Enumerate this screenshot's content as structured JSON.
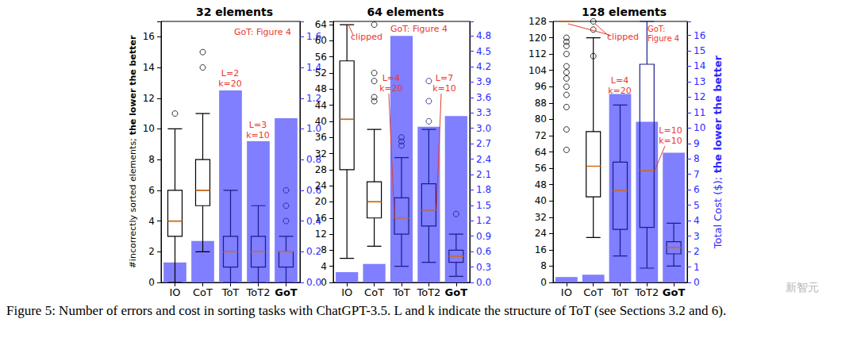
{
  "chart_data": [
    {
      "type": "boxplot",
      "title": "32 elements",
      "categories": [
        "IO",
        "CoT",
        "ToT",
        "ToT2",
        "GoT"
      ],
      "ylabel": "#incorrectly sorted elements; the lower the better",
      "ylim": [
        0,
        17
      ],
      "yticks": [
        0,
        2,
        4,
        6,
        8,
        10,
        12,
        14,
        16
      ],
      "y2lim": [
        0,
        1.7
      ],
      "y2ticks": [
        {
          "value": 0,
          "label": "0.0"
        },
        0.2,
        0.4,
        0.6,
        0.8,
        {
          "value": 1,
          "label": "1.0"
        },
        1.2,
        1.4,
        1.6
      ],
      "grid": false,
      "series": [
        {
          "type": "bar",
          "axis": "y2",
          "color": "#7f7fff",
          "values": [
            0.13,
            0.27,
            1.25,
            0.92,
            1.07
          ]
        },
        {
          "type": "boxplot",
          "colors": [
            "#000000",
            "#000000",
            "#1c1c8a",
            "#1c1c8a",
            "#1c1c8a"
          ],
          "values": [
            [
              0,
              3,
              4,
              6,
              10
            ],
            [
              2,
              5,
              6,
              8,
              11
            ],
            [
              0,
              1,
              2,
              3,
              6
            ],
            [
              0,
              1,
              2,
              3,
              5
            ],
            [
              0,
              1,
              2,
              2,
              3
            ]
          ],
          "outliers": [
            [
              11
            ],
            [
              14,
              15
            ],
            [],
            [],
            [
              4,
              5,
              6
            ]
          ]
        }
      ],
      "annotations": [
        "GoT: Figure 4",
        "L=2\nk=20",
        "L=3\nk=10"
      ]
    },
    {
      "type": "boxplot",
      "title": "64 elements",
      "categories": [
        "IO",
        "CoT",
        "ToT",
        "ToT2",
        "GoT"
      ],
      "ylim": [
        0,
        64.8
      ],
      "yticks": [
        0,
        4,
        8,
        12,
        16,
        20,
        24,
        28,
        32,
        36,
        40,
        44,
        48,
        52,
        56,
        60,
        64
      ],
      "y2lim": [
        0,
        5.08
      ],
      "y2ticks": [
        {
          "value": 0,
          "label": "0.0"
        },
        0.3,
        0.6,
        0.9,
        1.2,
        1.5,
        1.8,
        2.1,
        2.4,
        2.7,
        {
          "value": 3,
          "label": "3.0"
        },
        3.3,
        3.6,
        3.9,
        4.2,
        4.5,
        4.8
      ],
      "grid": false,
      "series": [
        {
          "type": "bar",
          "axis": "y2",
          "color": "#7f7fff",
          "values": [
            0.2,
            0.36,
            4.8,
            3.03,
            3.24
          ]
        },
        {
          "type": "boxplot",
          "colors": [
            "#000000",
            "#000000",
            "#1c1c8a",
            "#1c1c8a",
            "#1c1c8a"
          ],
          "values": [
            [
              6,
              28,
              40.5,
              55,
              64
            ],
            [
              9,
              16,
              20,
              25,
              38
            ],
            [
              4,
              12,
              16,
              21,
              31
            ],
            [
              5,
              14,
              18,
              24.5,
              38
            ],
            [
              1.5,
              5,
              6.5,
              8,
              12
            ]
          ],
          "outliers": [
            [],
            [
              45,
              46,
              50,
              52,
              64
            ],
            [
              34,
              35,
              36
            ],
            [
              40,
              45,
              50
            ],
            [
              17
            ]
          ]
        }
      ],
      "annotations": [
        "clipped",
        "GoT: Figure 4",
        "L=4\nk=20",
        "L=7\nk=10"
      ]
    },
    {
      "type": "boxplot",
      "title": "128 elements",
      "categories": [
        "IO",
        "CoT",
        "ToT",
        "ToT2",
        "GoT"
      ],
      "y2label": "Total Cost ($); the lower the better",
      "ylim": [
        0,
        128
      ],
      "yticks": [
        0,
        8,
        16,
        24,
        32,
        40,
        48,
        56,
        64,
        72,
        80,
        88,
        96,
        104,
        112,
        120,
        128
      ],
      "y2lim": [
        0,
        16.9
      ],
      "y2ticks": [
        0,
        1,
        2,
        3,
        4,
        5,
        6,
        7,
        8,
        9,
        10,
        11,
        12,
        13,
        14,
        15,
        16
      ],
      "grid": false,
      "series": [
        {
          "type": "bar",
          "axis": "y2",
          "color": "#7f7fff",
          "values": [
            0.35,
            0.5,
            12.2,
            10.4,
            8.4
          ]
        },
        {
          "type": "boxplot",
          "colors": [
            "#000000",
            "#000000",
            "#1c1c8a",
            "#1c1c8a",
            "#1c1c8a"
          ],
          "values": [
            [
              128,
              128,
              128,
              128,
              128
            ],
            [
              22,
              42,
              57,
              74,
              120
            ],
            [
              13,
              26,
              45,
              59,
              87
            ],
            [
              7,
              27,
              55,
              107,
              128
            ],
            [
              8,
              14,
              17,
              20,
              29
            ]
          ],
          "outliers": [
            [
              65,
              75,
              86,
              92,
              96,
              100,
              103,
              106,
              112,
              116,
              118,
              120
            ],
            [
              111,
              124,
              128
            ],
            [],
            [],
            []
          ]
        }
      ],
      "annotations": [
        "clipped",
        "GoT:\nFigure 4",
        "L=4\nk=20",
        "L=10\nk=10"
      ]
    }
  ],
  "caption": "Figure 5: Number of errors and cost in sorting tasks with ChatGPT-3.5. L and k indicate the structure of ToT (see Sections 3.2 and 6).",
  "watermark": "新智元"
}
